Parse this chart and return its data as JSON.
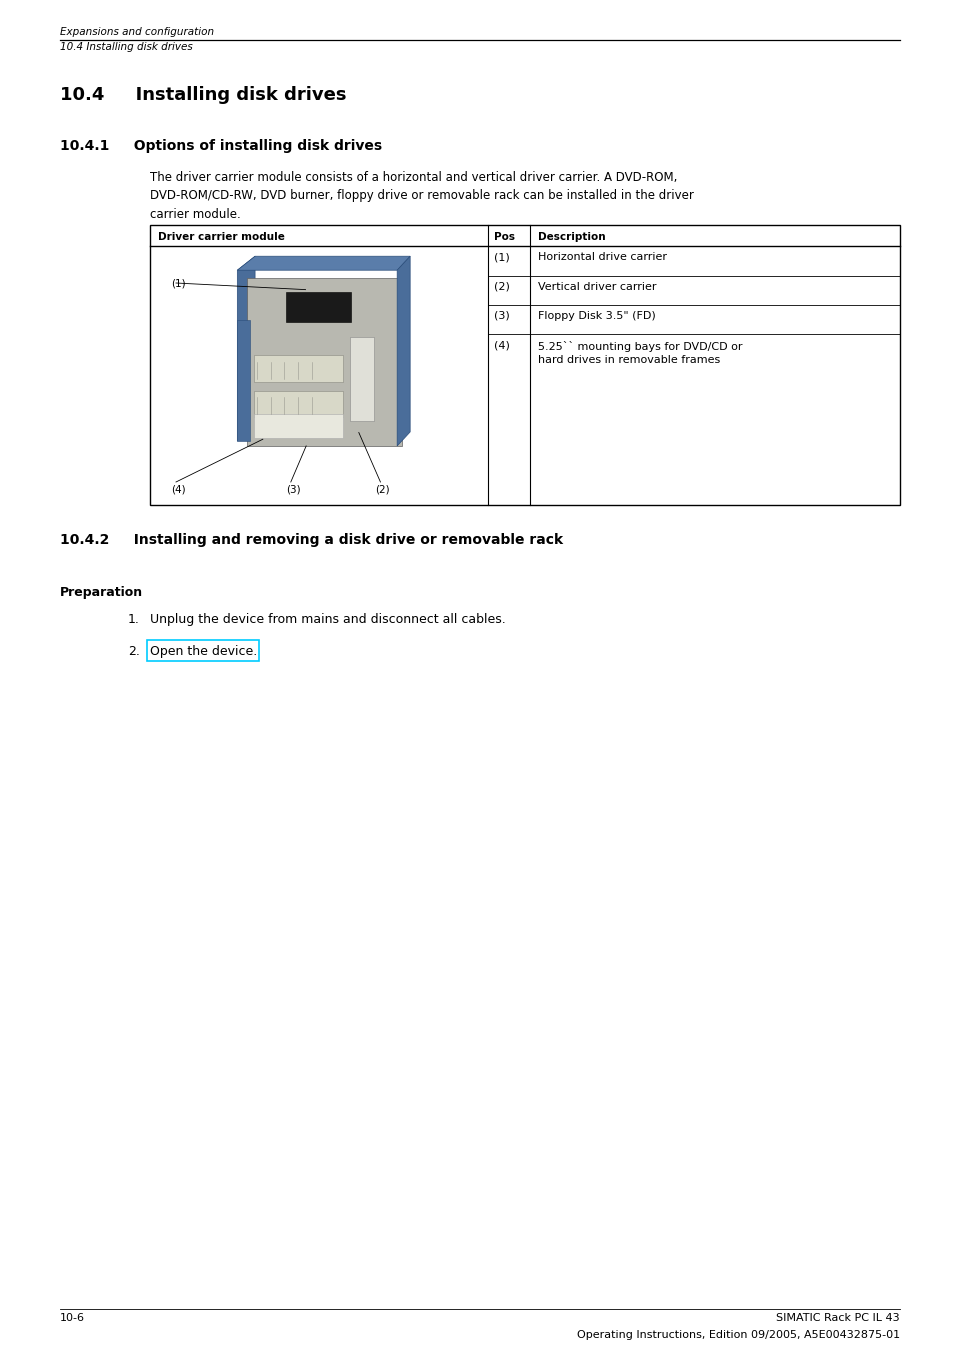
{
  "page_width": 9.54,
  "page_height": 13.51,
  "bg_color": "#ffffff",
  "header_italic_line1": "Expansions and configuration",
  "header_italic_line2": "10.4 Installing disk drives",
  "section_title": "10.4     Installing disk drives",
  "subsection_title": "10.4.1     Options of installing disk drives",
  "body_text": "The driver carrier module consists of a horizontal and vertical driver carrier. A DVD-ROM,\nDVD-ROM/CD-RW, DVD burner, floppy drive or removable rack can be installed in the driver\ncarrier module.",
  "table_header_col1": "Driver carrier module",
  "table_header_col2": "Pos",
  "table_header_col3": "Description",
  "table_rows": [
    {
      "pos": "(1)",
      "desc": "Horizontal drive carrier"
    },
    {
      "pos": "(2)",
      "desc": "Vertical driver carrier"
    },
    {
      "pos": "(3)",
      "desc": "Floppy Disk 3.5\" (FD)"
    },
    {
      "pos": "(4)",
      "desc": "5.25`` mounting bays for DVD/CD or\nhard drives in removable frames"
    }
  ],
  "section2_title": "10.4.2     Installing and removing a disk drive or removable rack",
  "preparation_label": "Preparation",
  "prep_steps": [
    "Unplug the device from mains and disconnect all cables.",
    "Open the device."
  ],
  "footer_left": "10-6",
  "footer_right_line1": "SIMATIC Rack PC IL 43",
  "footer_right_line2": "Operating Instructions, Edition 09/2005, A5E00432875-01",
  "highlight_color": "#00ccff",
  "table_line_color": "#000000",
  "text_color": "#000000"
}
